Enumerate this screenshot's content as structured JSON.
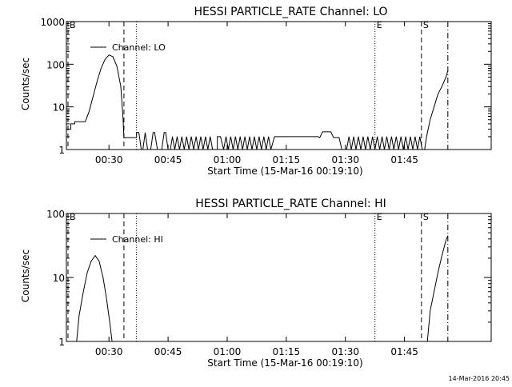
{
  "footer": {
    "timestamp": "14-Mar-2016 20:45"
  },
  "chart_data": [
    {
      "type": "line",
      "title": "HESSI PARTICLE_RATE Channel: LO",
      "xlabel": "Start Time (15-Mar-16 00:19:10)",
      "ylabel": "Counts/sec",
      "yscale": "log",
      "ylim": [
        1,
        1000
      ],
      "xlim": [
        19.2,
        127
      ],
      "x_ticks": [
        30,
        45,
        60,
        75,
        90,
        105
      ],
      "x_tick_labels": [
        "00:30",
        "00:45",
        "01:00",
        "01:15",
        "01:30",
        "01:45"
      ],
      "y_ticks": [
        1,
        10,
        100,
        1000
      ],
      "y_tick_labels": [
        "1",
        "10",
        "100",
        "1000"
      ],
      "legend": {
        "position": "top-left",
        "label": "Channel: LO"
      },
      "markers": [
        {
          "x": 19.6,
          "label": "B",
          "style": "dashed"
        },
        {
          "x": 33.8,
          "label": "",
          "style": "dashed"
        },
        {
          "x": 37.0,
          "label": "",
          "style": "dotted"
        },
        {
          "x": 97.5,
          "label": "E",
          "style": "dotted"
        },
        {
          "x": 109.3,
          "label": "S",
          "style": "dashed"
        },
        {
          "x": 116.0,
          "label": "",
          "style": "dashdot"
        }
      ],
      "series": [
        {
          "name": "Channel: LO",
          "points": [
            [
              19.2,
              3
            ],
            [
              20.3,
              3
            ],
            [
              20.3,
              4
            ],
            [
              21.3,
              4
            ],
            [
              21.3,
              4.5
            ],
            [
              24,
              4.5
            ],
            [
              25,
              8
            ],
            [
              26,
              18
            ],
            [
              27,
              40
            ],
            [
              28,
              80
            ],
            [
              29,
              130
            ],
            [
              30,
              165
            ],
            [
              31,
              150
            ],
            [
              32,
              90
            ],
            [
              33,
              30
            ],
            [
              33.6,
              5
            ],
            [
              33.8,
              1.9
            ],
            [
              37,
              1.9
            ],
            [
              37,
              2.5
            ],
            [
              37.6,
              2.5
            ],
            [
              38.2,
              1
            ],
            [
              38.6,
              1
            ],
            [
              39.2,
              2.5
            ],
            [
              39.8,
              1
            ],
            [
              40.6,
              1
            ],
            [
              41.2,
              2.5
            ],
            [
              41.6,
              2.5
            ],
            [
              42.3,
              1
            ],
            [
              43.4,
              1
            ],
            [
              44,
              2.5
            ],
            [
              44.4,
              2.5
            ],
            [
              45,
              1
            ],
            [
              45.6,
              1
            ],
            [
              46.1,
              2
            ],
            [
              46.7,
              1
            ],
            [
              47.3,
              2
            ],
            [
              47.9,
              1
            ],
            [
              48.5,
              2
            ],
            [
              49.1,
              1
            ],
            [
              49.7,
              2
            ],
            [
              50.3,
              1
            ],
            [
              50.9,
              2
            ],
            [
              51.5,
              1
            ],
            [
              52.1,
              2
            ],
            [
              52.7,
              1
            ],
            [
              53.3,
              2
            ],
            [
              53.9,
              1
            ],
            [
              54.5,
              2
            ],
            [
              55.1,
              1
            ],
            [
              55.7,
              2
            ],
            [
              56.3,
              1
            ],
            [
              57.5,
              1
            ],
            [
              57.5,
              2
            ],
            [
              58.3,
              2
            ],
            [
              59.1,
              1
            ],
            [
              59.7,
              2
            ],
            [
              60.3,
              1
            ],
            [
              60.9,
              2
            ],
            [
              61.5,
              1
            ],
            [
              62.1,
              2
            ],
            [
              62.7,
              1
            ],
            [
              63.3,
              2
            ],
            [
              63.9,
              1
            ],
            [
              64.5,
              2
            ],
            [
              65.1,
              1
            ],
            [
              65.7,
              2
            ],
            [
              66.3,
              1
            ],
            [
              66.9,
              2
            ],
            [
              67.5,
              1
            ],
            [
              68.1,
              2
            ],
            [
              68.7,
              1
            ],
            [
              69.3,
              2
            ],
            [
              69.9,
              1
            ],
            [
              70.5,
              2
            ],
            [
              71.1,
              1
            ],
            [
              72,
              2
            ],
            [
              83,
              2
            ],
            [
              83.5,
              1.9
            ],
            [
              84.2,
              2.6
            ],
            [
              86.3,
              2.6
            ],
            [
              87,
              1.9
            ],
            [
              88.4,
              1.9
            ],
            [
              89.1,
              1
            ],
            [
              90.3,
              1
            ],
            [
              90.9,
              2
            ],
            [
              91.5,
              1
            ],
            [
              92.1,
              2
            ],
            [
              92.7,
              1
            ],
            [
              93.3,
              2
            ],
            [
              93.9,
              1
            ],
            [
              94.5,
              2
            ],
            [
              95.1,
              1
            ],
            [
              95.7,
              2
            ],
            [
              96.3,
              1
            ],
            [
              96.9,
              2
            ],
            [
              97.5,
              1
            ],
            [
              98.1,
              2
            ],
            [
              98.7,
              1
            ],
            [
              99.3,
              2
            ],
            [
              99.9,
              1
            ],
            [
              100.5,
              2
            ],
            [
              101.1,
              1
            ],
            [
              101.7,
              2
            ],
            [
              102.3,
              1
            ],
            [
              102.9,
              2
            ],
            [
              103.5,
              1
            ],
            [
              104.1,
              2
            ],
            [
              104.7,
              1
            ],
            [
              105.3,
              2
            ],
            [
              105.9,
              1
            ],
            [
              106.5,
              2
            ],
            [
              107.1,
              1
            ],
            [
              107.7,
              2
            ],
            [
              108.3,
              1
            ],
            [
              108.9,
              2
            ],
            [
              109.5,
              1
            ],
            [
              110.1,
              1
            ],
            [
              110.6,
              2
            ],
            [
              111.5,
              5
            ],
            [
              112.5,
              10
            ],
            [
              113.5,
              20
            ],
            [
              114.5,
              30
            ],
            [
              115.5,
              50
            ],
            [
              116,
              70
            ]
          ]
        }
      ]
    },
    {
      "type": "line",
      "title": "HESSI PARTICLE_RATE Channel: HI",
      "xlabel": "Start Time (15-Mar-16 00:19:10)",
      "ylabel": "Counts/sec",
      "yscale": "log",
      "ylim": [
        1,
        100
      ],
      "xlim": [
        19.2,
        127
      ],
      "x_ticks": [
        30,
        45,
        60,
        75,
        90,
        105
      ],
      "x_tick_labels": [
        "00:30",
        "00:45",
        "01:00",
        "01:15",
        "01:30",
        "01:45"
      ],
      "y_ticks": [
        1,
        10,
        100
      ],
      "y_tick_labels": [
        "1",
        "10",
        "100"
      ],
      "legend": {
        "position": "top-left",
        "label": "Channel: HI"
      },
      "markers": [
        {
          "x": 19.6,
          "label": "B",
          "style": "dashed"
        },
        {
          "x": 33.8,
          "label": "",
          "style": "dashed"
        },
        {
          "x": 37.0,
          "label": "",
          "style": "dotted"
        },
        {
          "x": 97.5,
          "label": "E",
          "style": "dotted"
        },
        {
          "x": 109.3,
          "label": "S",
          "style": "dashed"
        },
        {
          "x": 116.0,
          "label": "",
          "style": "dashdot"
        }
      ],
      "series": [
        {
          "name": "Channel: HI",
          "points": [
            [
              21.8,
              1
            ],
            [
              22.4,
              2.5
            ],
            [
              23.5,
              6
            ],
            [
              24.5,
              12
            ],
            [
              25.5,
              18
            ],
            [
              26.5,
              22
            ],
            [
              27.5,
              18
            ],
            [
              28.5,
              10
            ],
            [
              29.3,
              5
            ],
            [
              30.2,
              2
            ],
            [
              30.8,
              1
            ]
          ]
        },
        {
          "name": "Channel: HI",
          "points": [
            [
              110.8,
              1
            ],
            [
              111.5,
              3
            ],
            [
              112.5,
              6
            ],
            [
              113.5,
              12
            ],
            [
              114.5,
              22
            ],
            [
              115.5,
              38
            ],
            [
              116,
              45
            ]
          ]
        }
      ]
    }
  ]
}
